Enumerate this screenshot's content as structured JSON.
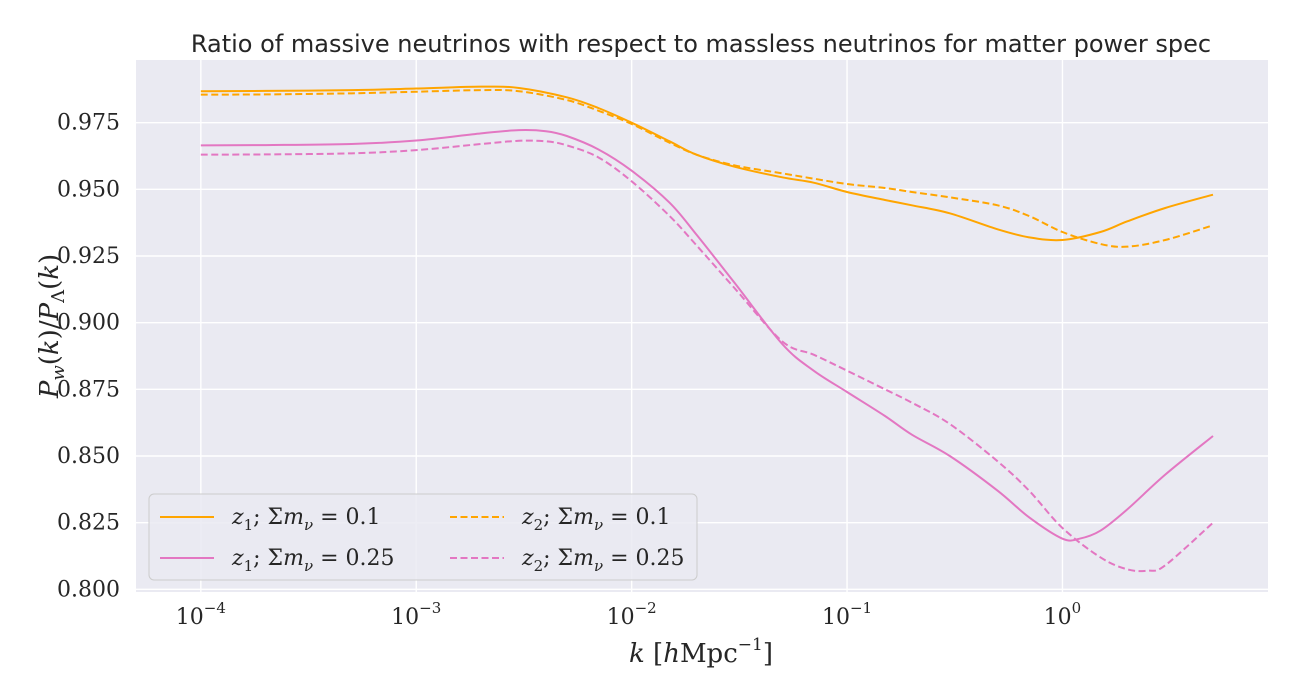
{
  "chart_data": {
    "type": "line",
    "title": "Ratio of massive neutrinos with respect to massless neutrinos for matter power spec",
    "xlabel": "k [hMpc⁻¹]",
    "ylabel": "P_w(k)/P_Λ(k)",
    "xscale": "log",
    "xlim": [
      5e-05,
      9
    ],
    "ylim": [
      0.799,
      0.9985
    ],
    "xticks": [
      0.0001,
      0.001,
      0.01,
      0.1,
      1
    ],
    "xtick_labels": [
      {
        "base": "10",
        "exp": "−4"
      },
      {
        "base": "10",
        "exp": "−3"
      },
      {
        "base": "10",
        "exp": "−2"
      },
      {
        "base": "10",
        "exp": "−1"
      },
      {
        "base": "10",
        "exp": "0"
      }
    ],
    "yticks": [
      0.8,
      0.825,
      0.85,
      0.875,
      0.9,
      0.925,
      0.95,
      0.975
    ],
    "ytick_labels": [
      "0.800",
      "0.825",
      "0.850",
      "0.875",
      "0.900",
      "0.925",
      "0.950",
      "0.975"
    ],
    "grid": true,
    "background": "#eaeaf2",
    "legend_position": "lower-left",
    "series": [
      {
        "name": "z₁; Σm_ν = 0.1",
        "color": "#ffa500",
        "dash": "solid",
        "x": [
          0.0001,
          0.0002,
          0.0005,
          0.001,
          0.002,
          0.003,
          0.005,
          0.007,
          0.01,
          0.015,
          0.02,
          0.03,
          0.05,
          0.07,
          0.1,
          0.15,
          0.2,
          0.3,
          0.5,
          0.7,
          1.0,
          1.5,
          2.0,
          3.0,
          5.0
        ],
        "y": [
          0.9868,
          0.9869,
          0.9872,
          0.9878,
          0.9885,
          0.988,
          0.9845,
          0.9805,
          0.975,
          0.968,
          0.963,
          0.9585,
          0.9545,
          0.9525,
          0.949,
          0.946,
          0.944,
          0.941,
          0.935,
          0.932,
          0.931,
          0.934,
          0.938,
          0.943,
          0.948
        ]
      },
      {
        "name": "z₁; Σm_ν = 0.25",
        "color": "#e377c2",
        "dash": "solid",
        "x": [
          0.0001,
          0.0002,
          0.0005,
          0.001,
          0.002,
          0.003,
          0.004,
          0.005,
          0.007,
          0.01,
          0.015,
          0.02,
          0.03,
          0.05,
          0.07,
          0.1,
          0.15,
          0.2,
          0.3,
          0.5,
          0.7,
          1.0,
          1.2,
          1.5,
          2.0,
          3.0,
          5.0
        ],
        "y": [
          0.9665,
          0.9666,
          0.967,
          0.9683,
          0.971,
          0.9722,
          0.9718,
          0.97,
          0.965,
          0.957,
          0.945,
          0.933,
          0.915,
          0.892,
          0.882,
          0.874,
          0.865,
          0.858,
          0.85,
          0.837,
          0.827,
          0.819,
          0.819,
          0.822,
          0.83,
          0.843,
          0.8575
        ]
      },
      {
        "name": "z₂; Σm_ν = 0.1",
        "color": "#ffa500",
        "dash": "dashed",
        "x": [
          0.0001,
          0.0002,
          0.0005,
          0.001,
          0.002,
          0.003,
          0.005,
          0.007,
          0.01,
          0.015,
          0.02,
          0.03,
          0.05,
          0.07,
          0.1,
          0.15,
          0.2,
          0.3,
          0.5,
          0.7,
          1.0,
          1.5,
          2.0,
          3.0,
          5.0
        ],
        "y": [
          0.9855,
          0.9856,
          0.986,
          0.9866,
          0.9872,
          0.9868,
          0.9835,
          0.9795,
          0.9745,
          0.9675,
          0.963,
          0.959,
          0.956,
          0.954,
          0.952,
          0.9505,
          0.949,
          0.947,
          0.944,
          0.94,
          0.934,
          0.9295,
          0.9285,
          0.931,
          0.9365
        ]
      },
      {
        "name": "z₂; Σm_ν = 0.25",
        "color": "#e377c2",
        "dash": "dashed",
        "x": [
          0.0001,
          0.0002,
          0.0005,
          0.001,
          0.002,
          0.003,
          0.004,
          0.005,
          0.007,
          0.01,
          0.015,
          0.02,
          0.03,
          0.05,
          0.07,
          0.1,
          0.15,
          0.2,
          0.3,
          0.5,
          0.7,
          1.0,
          1.5,
          2.0,
          2.5,
          3.0,
          5.0
        ],
        "y": [
          0.963,
          0.9631,
          0.9635,
          0.9647,
          0.967,
          0.9682,
          0.968,
          0.9665,
          0.962,
          0.953,
          0.94,
          0.929,
          0.913,
          0.893,
          0.888,
          0.882,
          0.875,
          0.87,
          0.862,
          0.848,
          0.837,
          0.823,
          0.812,
          0.8075,
          0.807,
          0.809,
          0.825
        ]
      }
    ]
  }
}
